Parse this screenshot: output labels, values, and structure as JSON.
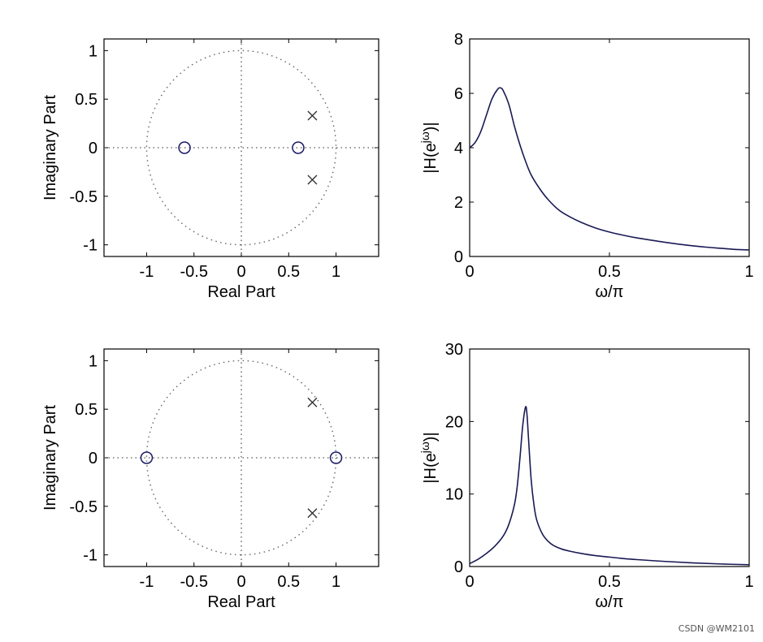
{
  "chart_data": [
    {
      "type": "scatter",
      "subtype": "pole-zero",
      "xlabel": "Real Part",
      "ylabel": "Imaginary Part",
      "xlim": [
        -1.45,
        1.45
      ],
      "ylim": [
        -1.12,
        1.12
      ],
      "xticks": [
        -1,
        -0.5,
        0,
        0.5,
        1
      ],
      "xtick_labels": [
        "-1",
        "-0.5",
        "0",
        "0.5",
        "1"
      ],
      "yticks": [
        -1,
        -0.5,
        0,
        0.5,
        1
      ],
      "ytick_labels": [
        "-1",
        "-0.5",
        "0",
        "0.5",
        "1"
      ],
      "unit_circle": true,
      "zeros": [
        [
          -0.6,
          0
        ],
        [
          0.6,
          0
        ]
      ],
      "poles": [
        [
          0.75,
          0.33
        ],
        [
          0.75,
          -0.33
        ]
      ]
    },
    {
      "type": "line",
      "xlabel": "ω/π",
      "ylabel": "|H(e^jω)|",
      "xlim": [
        0,
        1
      ],
      "ylim": [
        0,
        8
      ],
      "xticks": [
        0,
        0.5,
        1
      ],
      "xtick_labels": [
        "0",
        "0.5",
        "1"
      ],
      "yticks": [
        0,
        2,
        4,
        6,
        8
      ],
      "ytick_labels": [
        "0",
        "2",
        "4",
        "6",
        "8"
      ],
      "x": [
        0,
        0.02,
        0.04,
        0.06,
        0.08,
        0.1,
        0.11,
        0.12,
        0.14,
        0.16,
        0.18,
        0.2,
        0.22,
        0.25,
        0.28,
        0.32,
        0.36,
        0.4,
        0.45,
        0.5,
        0.55,
        0.6,
        0.65,
        0.7,
        0.75,
        0.8,
        0.85,
        0.9,
        0.95,
        1.0
      ],
      "y": [
        4.0,
        4.2,
        4.6,
        5.2,
        5.8,
        6.15,
        6.2,
        6.1,
        5.6,
        4.8,
        4.1,
        3.5,
        3.0,
        2.5,
        2.1,
        1.7,
        1.45,
        1.25,
        1.05,
        0.9,
        0.78,
        0.68,
        0.6,
        0.52,
        0.45,
        0.39,
        0.34,
        0.3,
        0.26,
        0.24
      ]
    },
    {
      "type": "scatter",
      "subtype": "pole-zero",
      "xlabel": "Real Part",
      "ylabel": "Imaginary Part",
      "xlim": [
        -1.45,
        1.45
      ],
      "ylim": [
        -1.12,
        1.12
      ],
      "xticks": [
        -1,
        -0.5,
        0,
        0.5,
        1
      ],
      "xtick_labels": [
        "-1",
        "-0.5",
        "0",
        "0.5",
        "1"
      ],
      "yticks": [
        -1,
        -0.5,
        0,
        0.5,
        1
      ],
      "ytick_labels": [
        "-1",
        "-0.5",
        "0",
        "0.5",
        "1"
      ],
      "unit_circle": true,
      "zeros": [
        [
          -1,
          0
        ],
        [
          1,
          0
        ]
      ],
      "poles": [
        [
          0.75,
          0.57
        ],
        [
          0.75,
          -0.57
        ]
      ]
    },
    {
      "type": "line",
      "xlabel": "ω/π",
      "ylabel": "|H(e^jω)|",
      "xlim": [
        0,
        1
      ],
      "ylim": [
        0,
        30
      ],
      "xticks": [
        0,
        0.5,
        1
      ],
      "xtick_labels": [
        "0",
        "0.5",
        "1"
      ],
      "yticks": [
        0,
        10,
        20,
        30
      ],
      "ytick_labels": [
        "0",
        "10",
        "20",
        "30"
      ],
      "x": [
        0,
        0.03,
        0.06,
        0.09,
        0.12,
        0.14,
        0.16,
        0.17,
        0.18,
        0.19,
        0.2,
        0.205,
        0.21,
        0.22,
        0.23,
        0.24,
        0.26,
        0.28,
        0.3,
        0.33,
        0.36,
        0.4,
        0.45,
        0.5,
        0.55,
        0.6,
        0.7,
        0.8,
        0.9,
        1.0
      ],
      "y": [
        0.4,
        1.0,
        1.8,
        2.8,
        4.2,
        5.8,
        8.5,
        11,
        15,
        19.5,
        22,
        21,
        18,
        12,
        8.5,
        6.4,
        4.5,
        3.5,
        2.9,
        2.4,
        2.1,
        1.8,
        1.5,
        1.3,
        1.1,
        0.95,
        0.7,
        0.5,
        0.35,
        0.25
      ]
    }
  ],
  "watermark": "CSDN @WM2101"
}
